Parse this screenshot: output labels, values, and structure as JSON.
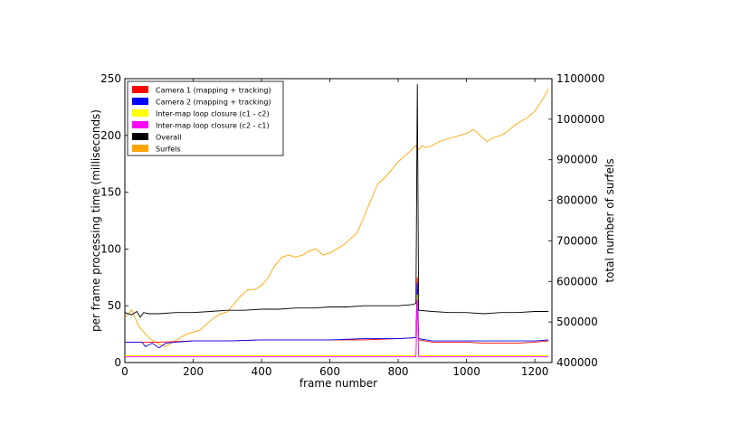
{
  "chart_data": {
    "type": "line",
    "xlabel": "frame number",
    "ylabel_left": "per frame processing time (milliseconds)",
    "ylabel_right": "total number of surfels",
    "xlim": [
      0,
      1250
    ],
    "ylim_left": [
      0,
      250
    ],
    "ylim_right": [
      400000,
      1100000
    ],
    "x_ticks": [
      0,
      200,
      400,
      600,
      800,
      1000,
      1200
    ],
    "y_ticks_left": [
      0,
      50,
      100,
      150,
      200,
      250
    ],
    "y_ticks_right": [
      400000,
      500000,
      600000,
      700000,
      800000,
      900000,
      1000000,
      1100000
    ],
    "grid": false,
    "legend_position": "top-left",
    "series": [
      {
        "name": "Camera 1 (mapping + tracking)",
        "color": "#ff0000",
        "axis": "left",
        "x": [
          0,
          100,
          200,
          300,
          400,
          500,
          600,
          700,
          800,
          852,
          856,
          860,
          900,
          950,
          1000,
          1050,
          1100,
          1150,
          1200,
          1240
        ],
        "y": [
          18,
          18,
          19,
          19,
          20,
          20,
          20,
          20,
          21,
          22,
          75,
          20,
          18,
          18,
          18,
          17,
          17,
          17,
          18,
          19
        ]
      },
      {
        "name": "Camera 2 (mapping + tracking)",
        "color": "#0000ff",
        "axis": "left",
        "x": [
          0,
          50,
          60,
          80,
          100,
          120,
          150,
          200,
          300,
          400,
          500,
          600,
          700,
          800,
          852,
          856,
          860,
          900,
          950,
          1000,
          1050,
          1100,
          1150,
          1200,
          1240
        ],
        "y": [
          18,
          18,
          14,
          17,
          13,
          17,
          18,
          19,
          19,
          20,
          20,
          20,
          21,
          21,
          22,
          70,
          21,
          19,
          19,
          19,
          19,
          19,
          19,
          19,
          20
        ]
      },
      {
        "name": "Inter-map loop closure (c1 - c2)",
        "color": "#ffff00",
        "axis": "left",
        "x": [
          0,
          100,
          400,
          800,
          852,
          856,
          860,
          1240
        ],
        "y": [
          6,
          6,
          6,
          6,
          6,
          60,
          6,
          6
        ]
      },
      {
        "name": "Inter-map loop closure (c2 - c1)",
        "color": "#ff00ff",
        "axis": "left",
        "x": [
          0,
          400,
          800,
          852,
          856,
          860,
          1240
        ],
        "y": [
          5,
          5,
          5,
          5,
          55,
          5,
          5
        ]
      },
      {
        "name": "Overall",
        "color": "#000000",
        "axis": "left",
        "x": [
          0,
          20,
          35,
          45,
          55,
          70,
          100,
          150,
          200,
          250,
          300,
          350,
          400,
          450,
          500,
          550,
          600,
          650,
          700,
          750,
          800,
          840,
          852,
          856,
          860,
          900,
          950,
          1000,
          1050,
          1100,
          1150,
          1200,
          1240
        ],
        "y": [
          44,
          42,
          45,
          40,
          44,
          43,
          43,
          44,
          44,
          45,
          46,
          46,
          47,
          47,
          48,
          48,
          49,
          49,
          50,
          50,
          50,
          51,
          52,
          245,
          46,
          45,
          44,
          44,
          43,
          44,
          44,
          45,
          45
        ]
      },
      {
        "name": "Surfels",
        "color": "#ffa500",
        "axis": "right",
        "x": [
          0,
          20,
          40,
          60,
          80,
          100,
          120,
          140,
          160,
          180,
          200,
          220,
          240,
          260,
          280,
          300,
          320,
          340,
          360,
          380,
          400,
          420,
          440,
          460,
          480,
          500,
          520,
          540,
          560,
          580,
          600,
          620,
          640,
          660,
          680,
          700,
          720,
          740,
          760,
          780,
          800,
          820,
          840,
          850,
          860,
          870,
          880,
          900,
          920,
          940,
          960,
          980,
          1000,
          1020,
          1040,
          1060,
          1080,
          1100,
          1120,
          1140,
          1160,
          1180,
          1200,
          1220,
          1240
        ],
        "y": [
          510000,
          530000,
          490000,
          470000,
          455000,
          445000,
          440000,
          450000,
          460000,
          470000,
          475000,
          480000,
          495000,
          510000,
          520000,
          525000,
          545000,
          565000,
          580000,
          580000,
          590000,
          610000,
          640000,
          660000,
          665000,
          660000,
          665000,
          675000,
          680000,
          665000,
          670000,
          680000,
          690000,
          705000,
          720000,
          760000,
          800000,
          840000,
          855000,
          875000,
          895000,
          910000,
          925000,
          935000,
          925000,
          935000,
          930000,
          935000,
          945000,
          950000,
          955000,
          960000,
          965000,
          975000,
          960000,
          945000,
          955000,
          960000,
          970000,
          985000,
          995000,
          1005000,
          1020000,
          1045000,
          1075000
        ]
      }
    ]
  },
  "legend": {
    "items": [
      {
        "label": "Camera 1 (mapping + tracking)",
        "color": "#ff0000"
      },
      {
        "label": "Camera 2 (mapping + tracking)",
        "color": "#0000ff"
      },
      {
        "label": "Inter-map loop closure (c1 - c2)",
        "color": "#ffff00"
      },
      {
        "label": "Inter-map loop closure (c2 - c1)",
        "color": "#ff00ff"
      },
      {
        "label": "Overall",
        "color": "#000000"
      },
      {
        "label": "Surfels",
        "color": "#ffa500"
      }
    ]
  }
}
